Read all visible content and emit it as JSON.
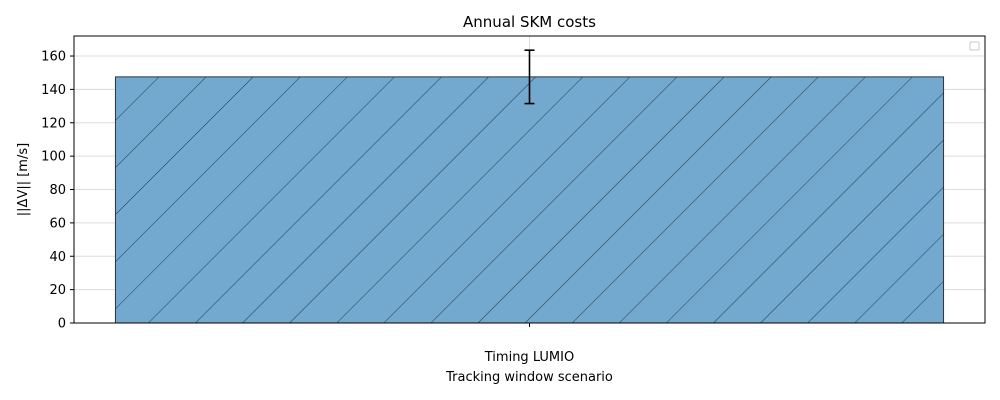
{
  "chart_data": {
    "type": "bar",
    "title": "Annual SKM costs",
    "xlabel": "Tracking window scenario",
    "ylabel": "||ΔV|| [m/s]",
    "categories": [
      "Timing LUMIO"
    ],
    "values": [
      147.5
    ],
    "error": [
      16
    ],
    "ylim": [
      0,
      172
    ],
    "yticks": [
      0,
      20,
      40,
      60,
      80,
      100,
      120,
      140,
      160
    ],
    "ytick_labels": [
      "0",
      "20",
      "40",
      "60",
      "80",
      "100",
      "120",
      "140",
      "160"
    ],
    "grid": true,
    "hatch": "diagonal",
    "legend": "top-right (empty)",
    "colors": {
      "bar_fill": "#74a9cf",
      "bar_edge": "#333333",
      "grid": "#dcdcdc",
      "errorbar": "#000000"
    }
  }
}
